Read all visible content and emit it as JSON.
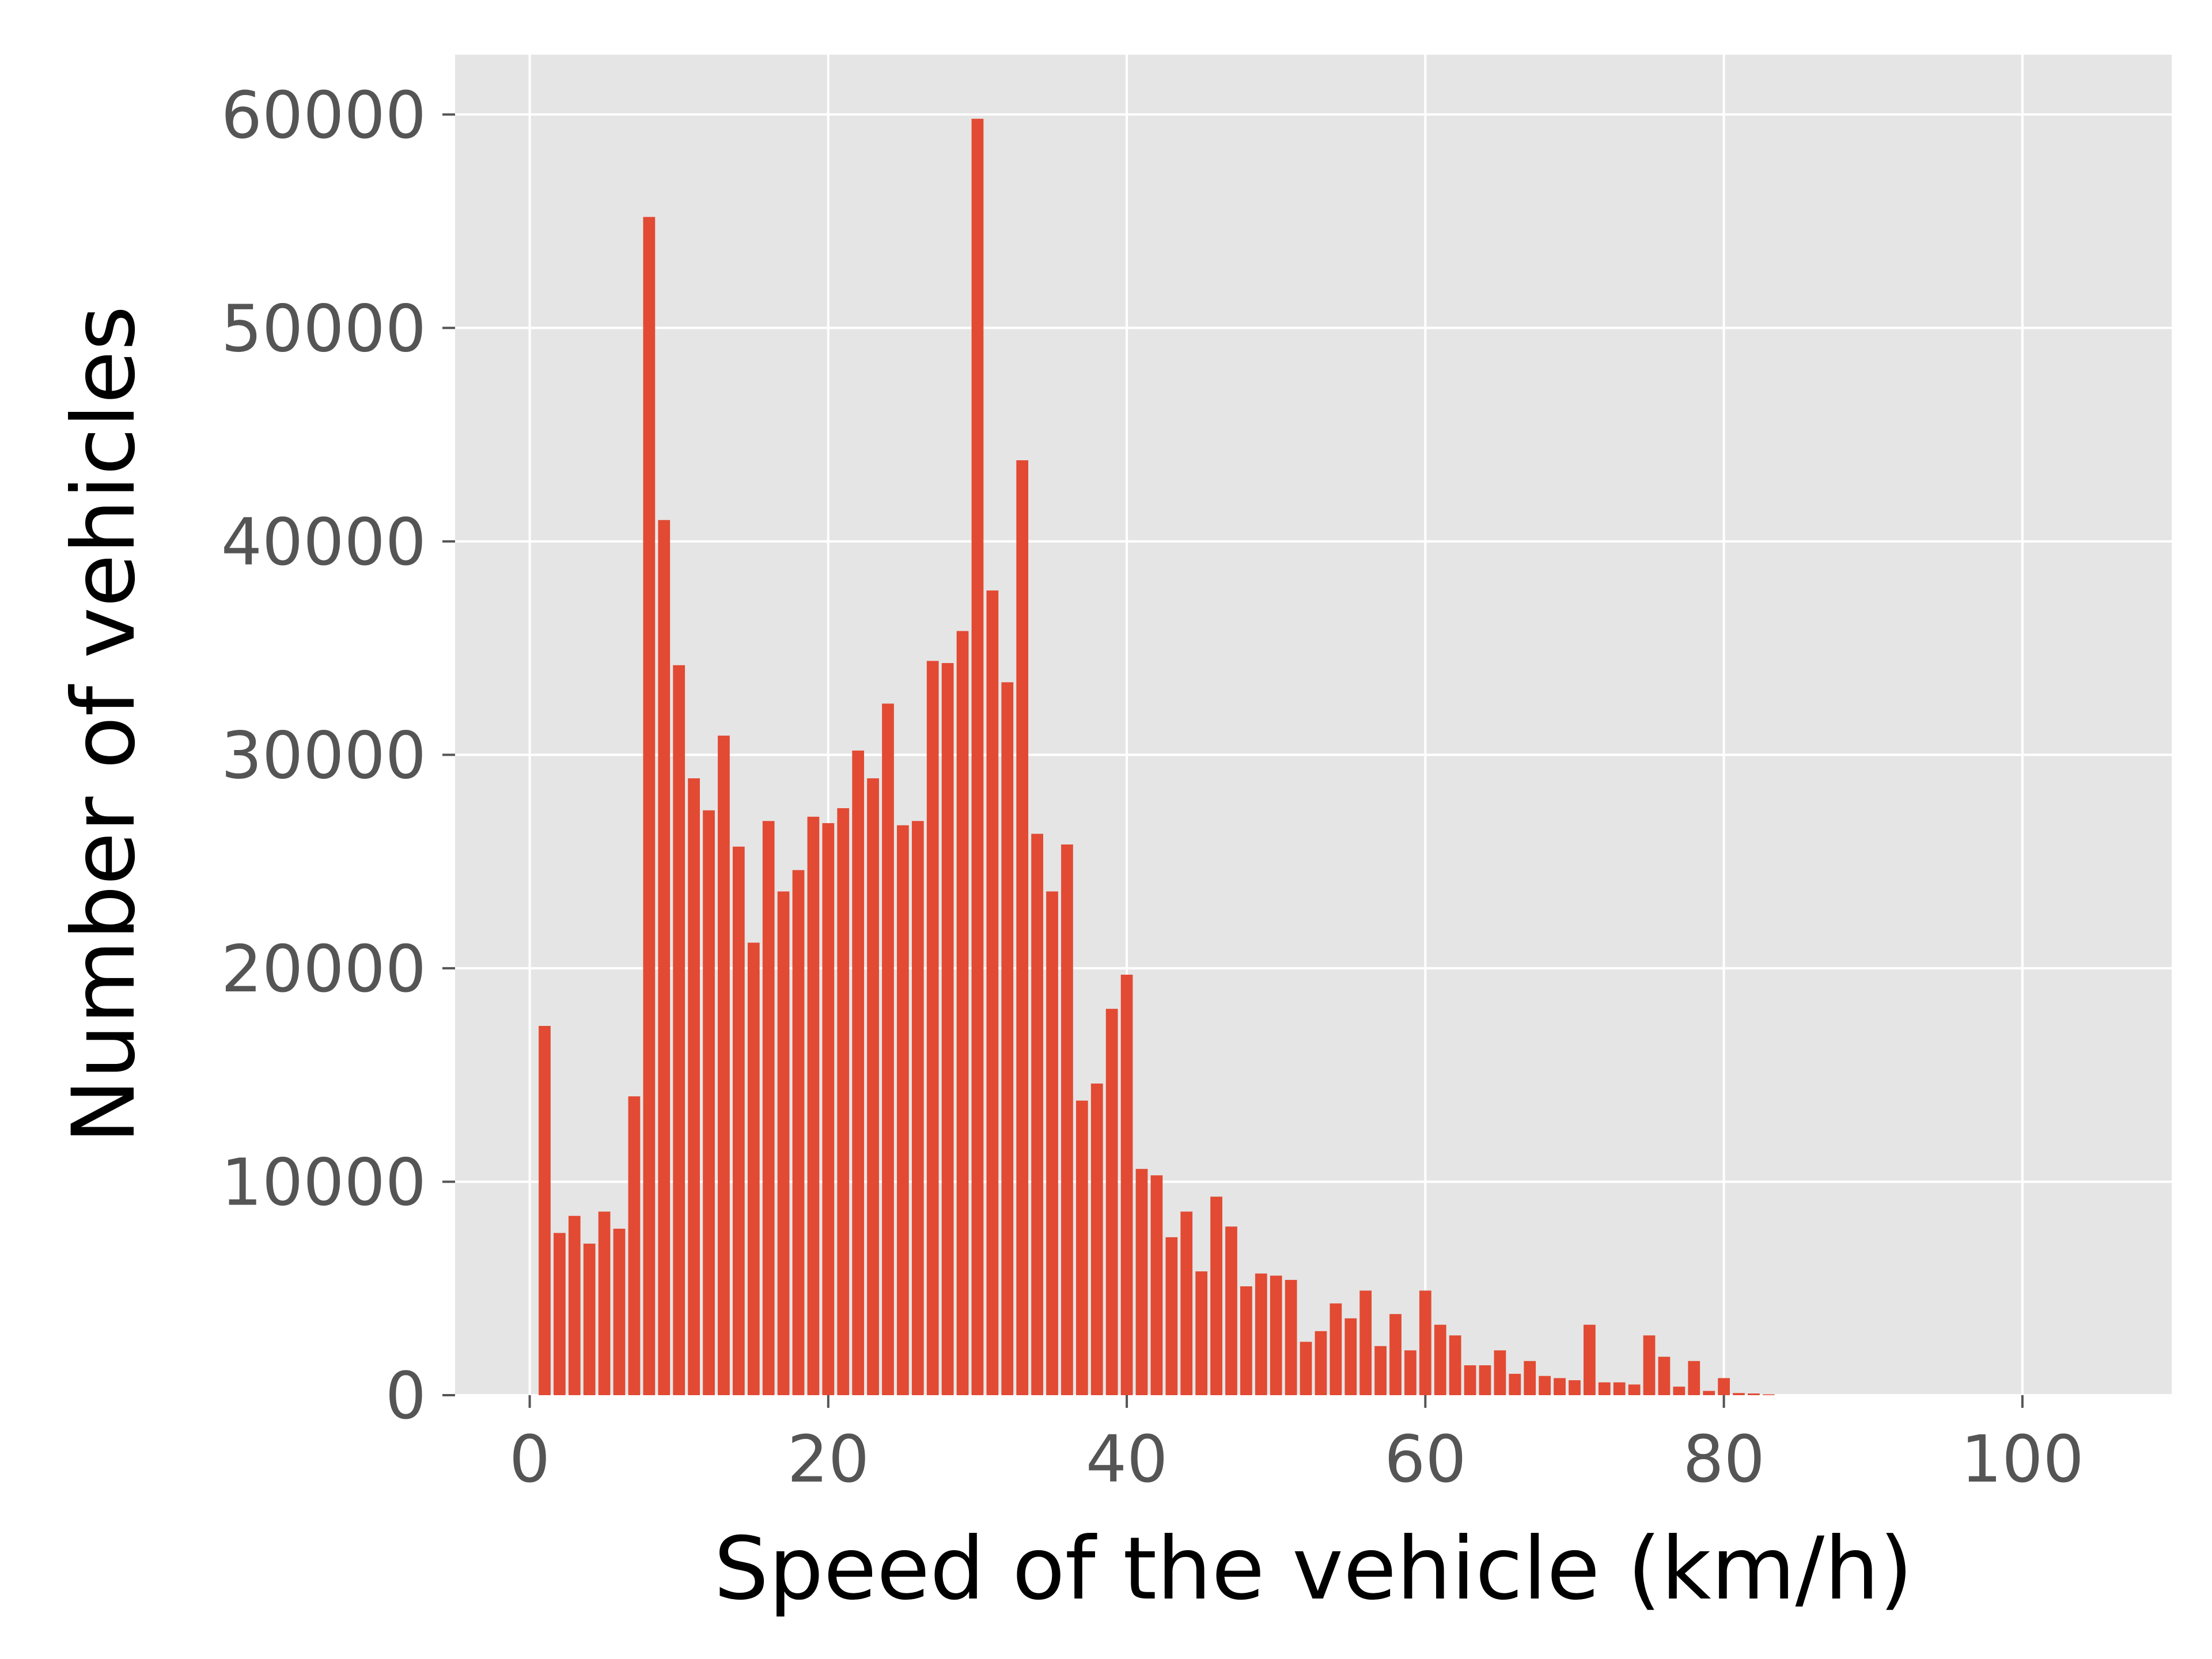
{
  "chart_data": {
    "type": "bar",
    "title": "",
    "xlabel": "Speed of the vehicle (km/h)",
    "ylabel": "Number of vehicles",
    "xlim": [
      -5,
      110
    ],
    "ylim": [
      0,
      62800
    ],
    "xticks": [
      0,
      20,
      40,
      60,
      80,
      100
    ],
    "yticks": [
      0,
      10000,
      20000,
      30000,
      40000,
      50000,
      60000
    ],
    "grid": true,
    "style": "ggplot",
    "bar_color": "#E24A33",
    "plot_background": "#E5E5E5",
    "grid_color": "#FFFFFF",
    "x": [
      1,
      2,
      3,
      4,
      5,
      6,
      7,
      8,
      9,
      10,
      11,
      12,
      13,
      14,
      15,
      16,
      17,
      18,
      19,
      20,
      21,
      22,
      23,
      24,
      25,
      26,
      27,
      28,
      29,
      30,
      31,
      32,
      33,
      34,
      35,
      36,
      37,
      38,
      39,
      40,
      41,
      42,
      43,
      44,
      45,
      46,
      47,
      48,
      49,
      50,
      51,
      52,
      53,
      54,
      55,
      56,
      57,
      58,
      59,
      60,
      61,
      62,
      63,
      64,
      65,
      66,
      67,
      68,
      69,
      70,
      71,
      72,
      73,
      74,
      75,
      76,
      77,
      78,
      79,
      80,
      81,
      82,
      83
    ],
    "values": [
      17300,
      7600,
      8400,
      7100,
      8600,
      7800,
      14000,
      55200,
      41000,
      34200,
      28900,
      27400,
      30900,
      25700,
      21200,
      26900,
      23600,
      24600,
      27100,
      26800,
      27500,
      30200,
      28900,
      32400,
      26700,
      26900,
      34400,
      34300,
      35800,
      59800,
      37700,
      33400,
      43800,
      26300,
      23600,
      25800,
      13800,
      14600,
      18100,
      19700,
      10600,
      10300,
      7400,
      8600,
      5800,
      9300,
      7900,
      5100,
      5700,
      5600,
      5400,
      2500,
      3000,
      4300,
      3600,
      4900,
      2300,
      3800,
      2100,
      4900,
      3300,
      2800,
      1400,
      1400,
      2100,
      1000,
      1600,
      900,
      800,
      700,
      3300,
      600,
      600,
      500,
      2800,
      1800,
      400,
      1600,
      200,
      800,
      100,
      80,
      40
    ]
  }
}
